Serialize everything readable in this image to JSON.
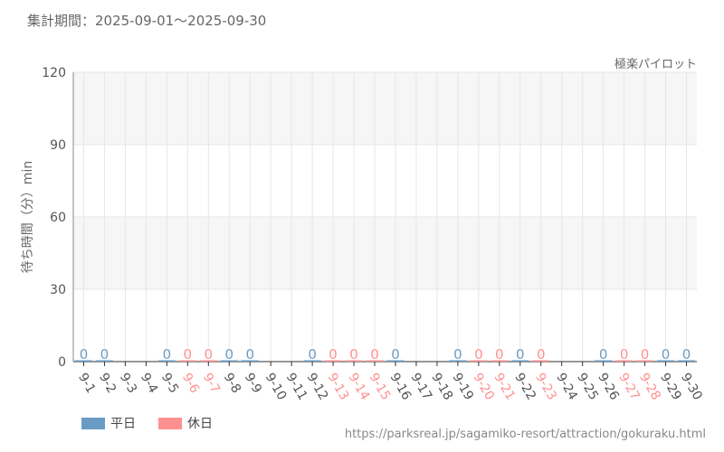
{
  "header": {
    "period": "集計期間：2025-09-01～2025-09-30",
    "url": "https://parksreal.jp/sagamiko-resort/attraction/gokuraku.html"
  },
  "chart_data": {
    "type": "bar",
    "series_title": "極楽パイロット",
    "ylabel": "待ち時間（分）min",
    "ylim": [
      0,
      120
    ],
    "yticks": [
      0,
      30,
      60,
      90,
      120
    ],
    "grid": true,
    "legend_placement": "bottom-left",
    "colors": {
      "weekday": "#6a9bc3",
      "holiday": "#ff9090",
      "text": "#555555"
    },
    "legend": [
      {
        "name": "平日",
        "key": "weekday"
      },
      {
        "name": "休日",
        "key": "holiday"
      }
    ],
    "categories": [
      "9-1",
      "9-2",
      "9-3",
      "9-4",
      "9-5",
      "9-6",
      "9-7",
      "9-8",
      "9-9",
      "9-10",
      "9-11",
      "9-12",
      "9-13",
      "9-14",
      "9-15",
      "9-16",
      "9-17",
      "9-18",
      "9-19",
      "9-20",
      "9-21",
      "9-22",
      "9-23",
      "9-24",
      "9-25",
      "9-26",
      "9-27",
      "9-28",
      "9-29",
      "9-30"
    ],
    "values": [
      0,
      0,
      null,
      null,
      0,
      0,
      0,
      0,
      0,
      null,
      null,
      0,
      0,
      0,
      0,
      0,
      null,
      null,
      0,
      0,
      0,
      0,
      0,
      null,
      null,
      0,
      0,
      0,
      0,
      0
    ],
    "day_type": [
      "weekday",
      "weekday",
      "weekday",
      "weekday",
      "weekday",
      "holiday",
      "holiday",
      "weekday",
      "weekday",
      "weekday",
      "weekday",
      "weekday",
      "holiday",
      "holiday",
      "holiday",
      "weekday",
      "weekday",
      "weekday",
      "weekday",
      "holiday",
      "holiday",
      "weekday",
      "holiday",
      "weekday",
      "weekday",
      "weekday",
      "holiday",
      "holiday",
      "weekday",
      "weekday"
    ]
  }
}
